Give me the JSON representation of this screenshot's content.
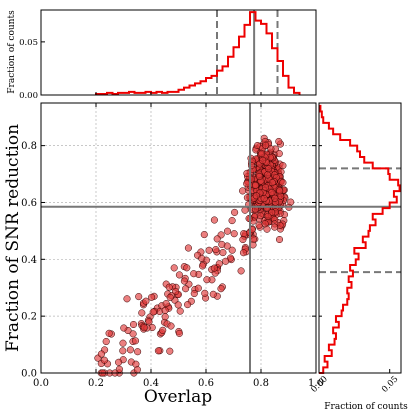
{
  "chart_data": [
    {
      "panel": "main-scatter",
      "type": "scatter",
      "xlabel": "Overlap",
      "ylabel": "Fraction of SNR reduction",
      "xlim": [
        0.0,
        1.0
      ],
      "ylim": [
        0.0,
        0.95
      ],
      "xticks": [
        "0.0",
        "0.2",
        "0.4",
        "0.6",
        "0.8",
        "1.0"
      ],
      "yticks": [
        "0.0",
        "0.2",
        "0.4",
        "0.6",
        "0.8"
      ],
      "grid": true,
      "marker_color": "#e03a3a",
      "reference_lines": {
        "x": 0.76,
        "y": 0.585
      },
      "points_summary": "approximately 700 points; dense cluster near overlap 0.75-0.9, SNR reduction 0.5-0.8; sparse tail down to overlap 0.2, SNR reduction 0.0-0.3"
    },
    {
      "panel": "top-histogram",
      "type": "line",
      "ylabel": "Fraction of counts",
      "yticks": [
        "0.00",
        "0.05"
      ],
      "ylim": [
        0.0,
        0.08
      ],
      "xlim": [
        0.0,
        1.0
      ],
      "color": "#ee0000",
      "bin_edges": [
        0.2,
        0.22,
        0.24,
        0.26,
        0.28,
        0.3,
        0.32,
        0.34,
        0.36,
        0.38,
        0.4,
        0.42,
        0.44,
        0.46,
        0.48,
        0.5,
        0.52,
        0.54,
        0.56,
        0.58,
        0.6,
        0.62,
        0.64,
        0.66,
        0.68,
        0.7,
        0.72,
        0.74,
        0.76,
        0.78,
        0.8,
        0.82,
        0.84,
        0.86,
        0.88,
        0.9,
        0.92,
        0.94
      ],
      "values": [
        0.001,
        0.001,
        0.002,
        0.001,
        0.002,
        0.002,
        0.003,
        0.002,
        0.002,
        0.003,
        0.002,
        0.003,
        0.002,
        0.003,
        0.003,
        0.005,
        0.007,
        0.009,
        0.011,
        0.013,
        0.016,
        0.018,
        0.023,
        0.027,
        0.036,
        0.045,
        0.055,
        0.066,
        0.078,
        0.07,
        0.067,
        0.058,
        0.044,
        0.032,
        0.018,
        0.007,
        0.002
      ],
      "dashed_lines": [
        0.64,
        0.86
      ],
      "solid_line": 0.775
    },
    {
      "panel": "right-histogram",
      "type": "line",
      "xlabel": "Fraction of counts",
      "xticks": [
        "0.00",
        "0.05"
      ],
      "xlim": [
        0.0,
        0.058
      ],
      "ylim": [
        0.0,
        0.95
      ],
      "color": "#ee0000",
      "bin_edges": [
        0.0,
        0.02,
        0.04,
        0.06,
        0.08,
        0.1,
        0.12,
        0.14,
        0.16,
        0.18,
        0.2,
        0.22,
        0.24,
        0.26,
        0.28,
        0.3,
        0.32,
        0.34,
        0.36,
        0.38,
        0.4,
        0.42,
        0.44,
        0.46,
        0.48,
        0.5,
        0.52,
        0.54,
        0.56,
        0.58,
        0.6,
        0.62,
        0.64,
        0.66,
        0.68,
        0.7,
        0.72,
        0.74,
        0.76,
        0.78,
        0.8,
        0.82,
        0.84,
        0.86,
        0.88,
        0.9,
        0.92,
        0.94
      ],
      "values": [
        0.003,
        0.006,
        0.004,
        0.009,
        0.007,
        0.011,
        0.012,
        0.01,
        0.014,
        0.012,
        0.016,
        0.017,
        0.02,
        0.021,
        0.02,
        0.023,
        0.021,
        0.024,
        0.022,
        0.026,
        0.028,
        0.025,
        0.033,
        0.031,
        0.035,
        0.036,
        0.04,
        0.038,
        0.045,
        0.05,
        0.055,
        0.053,
        0.057,
        0.056,
        0.05,
        0.049,
        0.038,
        0.032,
        0.029,
        0.027,
        0.022,
        0.015,
        0.01,
        0.007,
        0.003,
        0.002,
        0.001
      ],
      "dashed_lines": [
        0.355,
        0.72
      ],
      "solid_line": 0.585
    }
  ]
}
